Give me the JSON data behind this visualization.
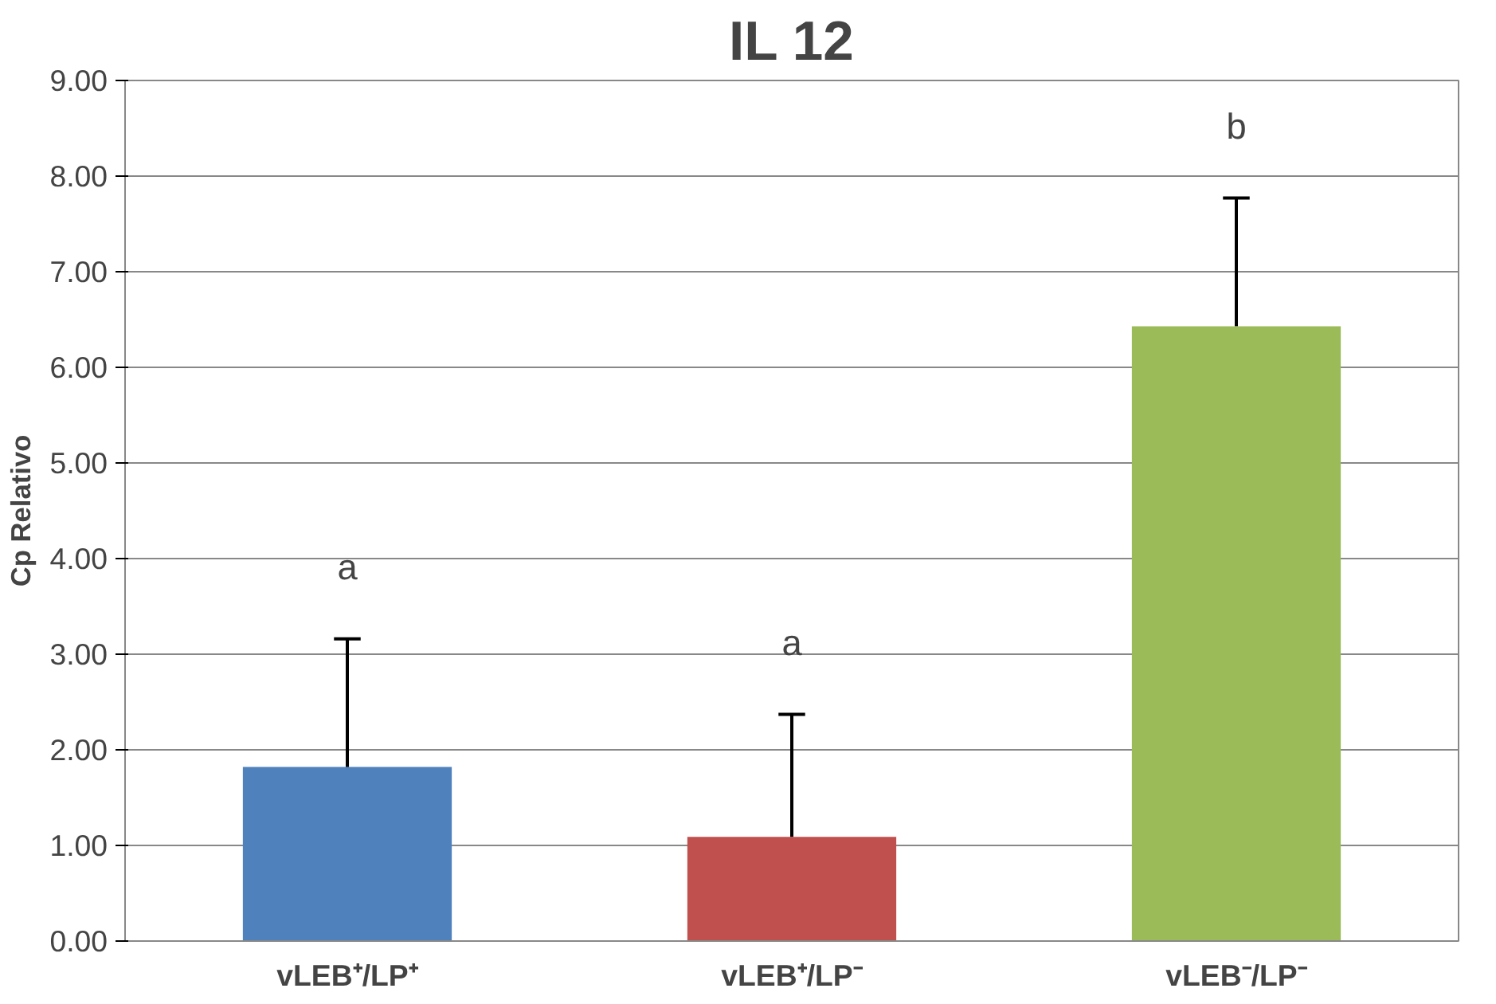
{
  "chart_data": {
    "type": "bar",
    "title": "IL 12",
    "ylabel": "Cp Relativo",
    "categories": [
      "vLEB⁺/LP⁺",
      "vLEB⁺/LP⁻",
      "vLEB⁻/LP⁻"
    ],
    "values": [
      1.82,
      1.09,
      6.43
    ],
    "colors": [
      "#4f81bd",
      "#c0504d",
      "#9bbb59"
    ],
    "errors": [
      [
        1.82,
        3.16
      ],
      [
        1.09,
        2.37
      ],
      [
        6.43,
        7.77
      ]
    ],
    "ylim": [
      0,
      9
    ],
    "yticks": [
      {
        "value": 0,
        "label": "0.00"
      },
      {
        "value": 1,
        "label": "1.00"
      },
      {
        "value": 2,
        "label": "2.00"
      },
      {
        "value": 3,
        "label": "3.00"
      },
      {
        "value": 4,
        "label": "4.00"
      },
      {
        "value": 5,
        "label": "5.00"
      },
      {
        "value": 6,
        "label": "6.00"
      },
      {
        "value": 7,
        "label": "7.00"
      },
      {
        "value": 8,
        "label": "8.00"
      },
      {
        "value": 9,
        "label": "9.00"
      }
    ],
    "grid": "y",
    "annotations": [
      "a",
      "a",
      "b"
    ]
  }
}
